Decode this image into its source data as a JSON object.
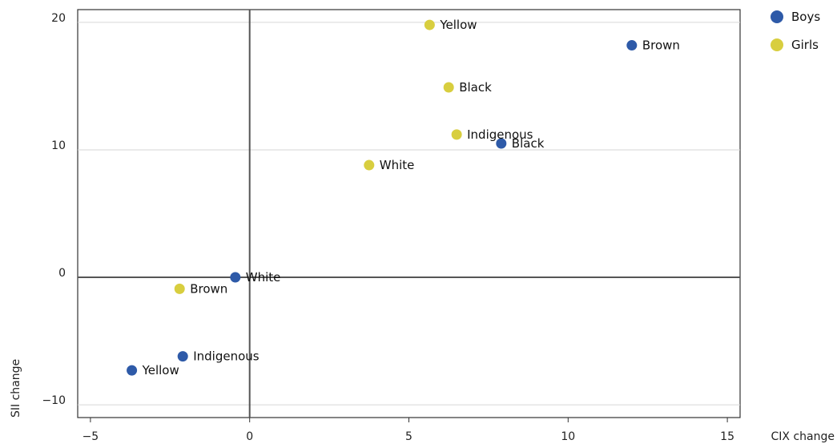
{
  "chart_data": {
    "type": "scatter",
    "xlabel": "CIX change",
    "ylabel": "SII change",
    "xlim": [
      -5.4,
      15.4
    ],
    "ylim": [
      -11,
      21
    ],
    "xticks": [
      -5,
      0,
      5,
      10,
      15
    ],
    "xtick_labels": [
      "−5",
      "0",
      "5",
      "10",
      "15"
    ],
    "yticks": [
      -10,
      0,
      10,
      20
    ],
    "ytick_labels": [
      "−10",
      "0",
      "10",
      "20"
    ],
    "grid": true,
    "legend_position": "right",
    "series": [
      {
        "name": "Boys",
        "color": "#2e5aa8",
        "points": [
          {
            "label": "Brown",
            "x": 12.0,
            "y": 18.2
          },
          {
            "label": "Black",
            "x": 7.9,
            "y": 10.5
          },
          {
            "label": "White",
            "x": -0.45,
            "y": 0.0
          },
          {
            "label": "Indigenous",
            "x": -2.1,
            "y": -6.2
          },
          {
            "label": "Yellow",
            "x": -3.7,
            "y": -7.3
          }
        ]
      },
      {
        "name": "Girls",
        "color": "#d8ce3f",
        "points": [
          {
            "label": "Yellow",
            "x": 5.65,
            "y": 19.8
          },
          {
            "label": "Black",
            "x": 6.25,
            "y": 14.9
          },
          {
            "label": "Indigenous",
            "x": 6.5,
            "y": 11.2
          },
          {
            "label": "White",
            "x": 3.75,
            "y": 8.8
          },
          {
            "label": "Brown",
            "x": -2.2,
            "y": -0.9
          }
        ]
      }
    ]
  }
}
